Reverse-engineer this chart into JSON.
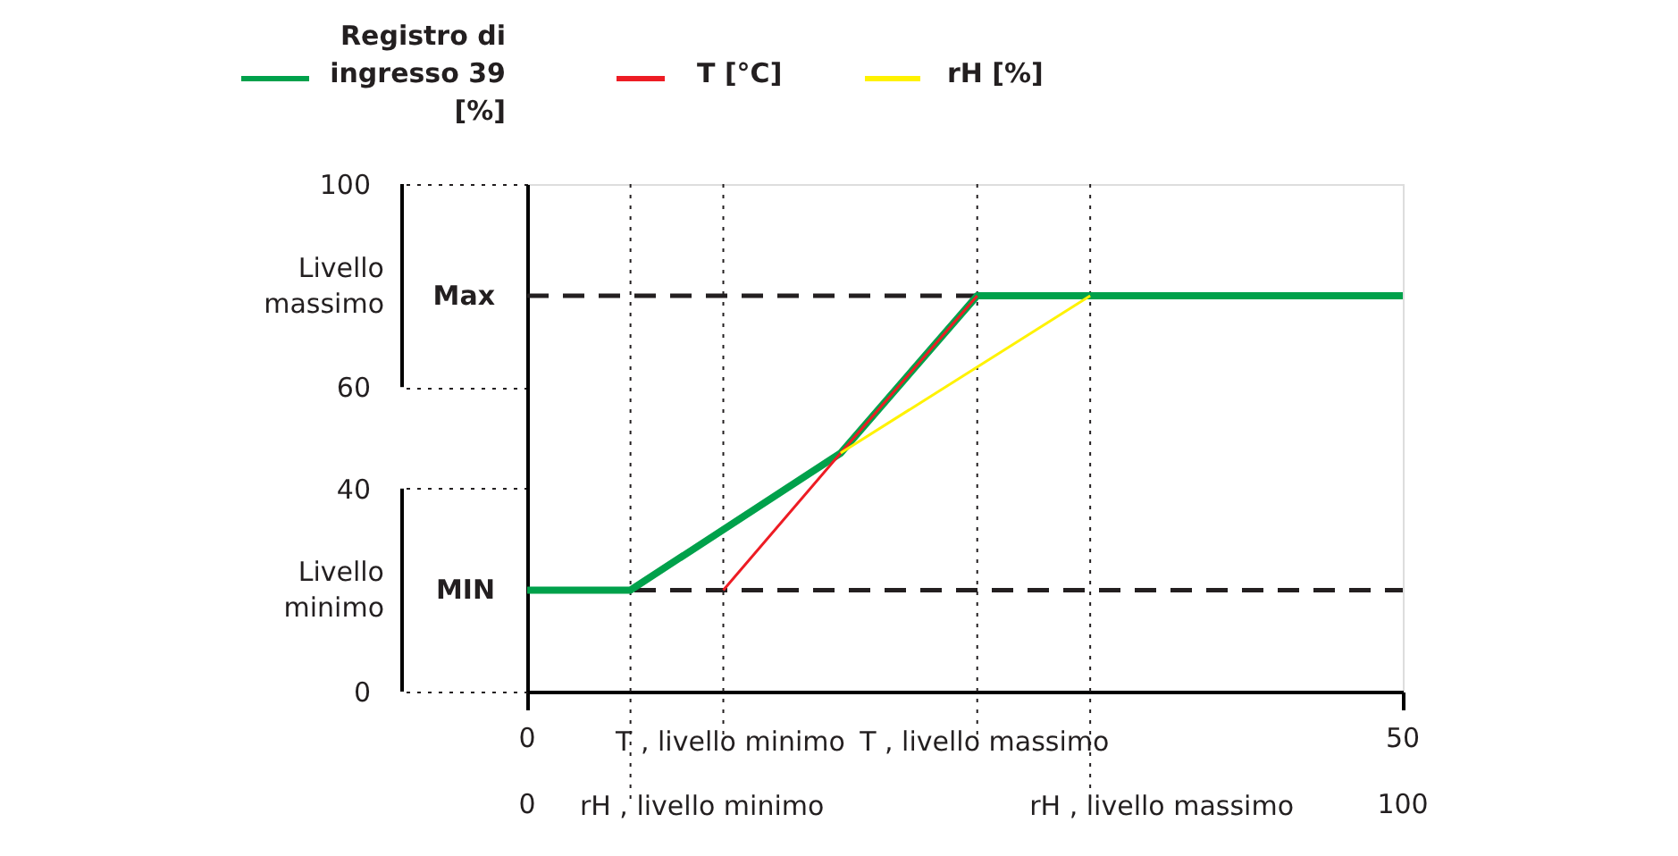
{
  "chart_data": {
    "type": "line",
    "xlim": [
      0,
      50
    ],
    "xticks": [
      0,
      50
    ],
    "x2lim": [
      0,
      100
    ],
    "x2ticks": [
      0,
      100
    ],
    "ylim": [
      0,
      100
    ],
    "yticks": [
      0,
      40,
      60,
      100
    ],
    "series": [
      {
        "name": "Registro di ingresso 39 [%]",
        "color": "#00a14b",
        "x": [
          0,
          5.9,
          17.9,
          25.7,
          50
        ],
        "values": [
          20,
          20,
          47,
          78,
          78
        ]
      },
      {
        "name": "T [°C]",
        "color": "#ed1c24",
        "x": [
          11.2,
          17.9,
          25.7
        ],
        "values": [
          20,
          47,
          78
        ]
      },
      {
        "name": "rH [%]",
        "color": "#fff200",
        "axis": "x2",
        "x": [
          35.8,
          64.3
        ],
        "values": [
          47,
          78
        ]
      }
    ],
    "ref_lines": [
      {
        "axis": "y",
        "value": 78,
        "label": "Max",
        "color": "#231f20",
        "line_style": "dashed"
      },
      {
        "axis": "y",
        "value": 20,
        "label": "MIN",
        "color": "#231f20",
        "line_style": "dashed"
      },
      {
        "axis": "x",
        "value": 11.2,
        "label": "T , livello minimo",
        "color": "#231f20",
        "line_style": "dotted"
      },
      {
        "axis": "x",
        "value": 25.7,
        "label": "T , livello massimo",
        "color": "#231f20",
        "line_style": "dotted"
      },
      {
        "axis": "x2",
        "value": 11.8,
        "label": "rH , livello minimo",
        "color": "#231f20",
        "line_style": "dotted"
      },
      {
        "axis": "x2",
        "value": 64.3,
        "label": "rH , livello massimo",
        "color": "#231f20",
        "line_style": "dotted"
      }
    ],
    "annotations": [
      "Livello massimo",
      "Livello minimo"
    ],
    "legend": "top",
    "grid": false,
    "marker": "none",
    "line_style": "solid"
  }
}
